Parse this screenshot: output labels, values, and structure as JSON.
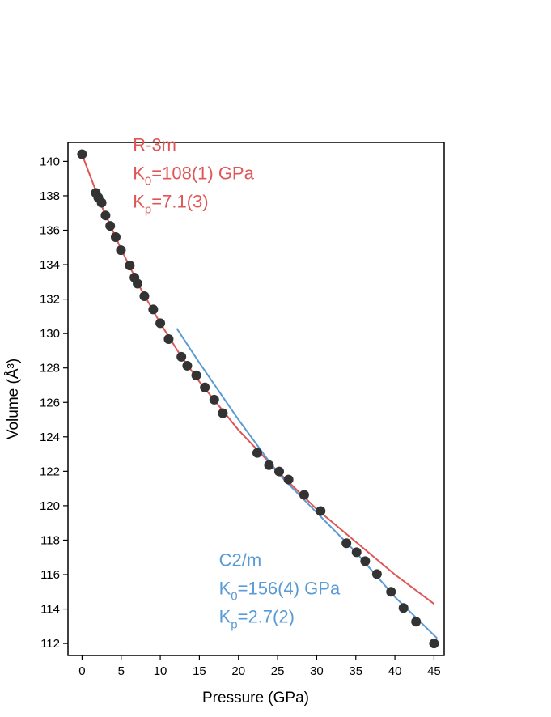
{
  "chart_data": {
    "type": "scatter",
    "x_label": "Pressure (GPa)",
    "y_label": "Volume (Å³)",
    "xlim": [
      -1.8,
      46.3
    ],
    "ylim": [
      111.3,
      141.1
    ],
    "xticks": [
      0,
      5,
      10,
      15,
      20,
      25,
      30,
      35,
      40,
      45
    ],
    "yticks": [
      112,
      114,
      116,
      118,
      120,
      122,
      124,
      126,
      128,
      130,
      132,
      134,
      136,
      138,
      140
    ],
    "points": {
      "color": "#333333",
      "x": [
        0,
        1.76,
        2.07,
        2.5,
        3.0,
        3.6,
        4.3,
        4.97,
        6.1,
        6.7,
        7.1,
        7.97,
        9.1,
        10.0,
        11.07,
        12.7,
        13.45,
        14.6,
        15.7,
        16.9,
        18.0,
        22.4,
        23.9,
        25.2,
        26.4,
        28.4,
        30.5,
        33.8,
        35.1,
        36.2,
        37.7,
        39.5,
        41.1,
        42.7,
        45.0
      ],
      "values": [
        140.42,
        138.17,
        137.9,
        137.6,
        136.86,
        136.25,
        135.6,
        134.84,
        133.95,
        133.25,
        132.9,
        132.17,
        131.4,
        130.6,
        129.68,
        128.65,
        128.13,
        127.57,
        126.87,
        126.16,
        125.37,
        123.07,
        122.36,
        121.99,
        121.52,
        120.63,
        119.69,
        117.82,
        117.3,
        116.78,
        116.03,
        115.0,
        114.06,
        113.26,
        112.0
      ]
    },
    "fits": [
      {
        "color": "#e05555",
        "x": [
          0,
          2.5,
          5,
          7.5,
          10,
          12.5,
          15,
          20,
          25,
          30,
          35,
          40,
          45
        ],
        "values": [
          140.4,
          137.4,
          134.9,
          132.6,
          130.6,
          128.8,
          127.2,
          124.4,
          122.0,
          119.8,
          117.9,
          116.0,
          114.3
        ]
      },
      {
        "color": "#5b9bd5",
        "x": [
          12.1,
          15,
          20,
          25,
          30,
          35,
          40,
          45.4
        ],
        "values": [
          130.3,
          128.3,
          125.0,
          121.9,
          119.6,
          117.3,
          114.7,
          112.3
        ]
      }
    ],
    "annotations": [
      {
        "color": "#e05555",
        "x": 6.5,
        "y": 140.6,
        "phase": "R-3m",
        "k0": [
          "K",
          "0",
          "=108(1) GPa"
        ],
        "kp": [
          "K",
          "p",
          "=7.1(3)"
        ]
      },
      {
        "color": "#5b9bd5",
        "x": 17.5,
        "y": 116.5,
        "phase": "C2/m",
        "k0": [
          "K",
          "0",
          "=156(4) GPa"
        ],
        "kp": [
          "K",
          "p",
          "=2.7(2)"
        ]
      }
    ]
  }
}
